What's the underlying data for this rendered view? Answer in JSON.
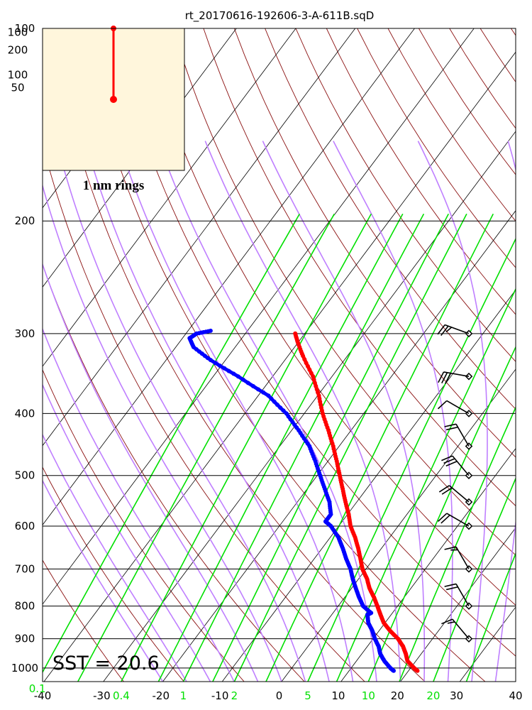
{
  "chart_data": {
    "type": "skew-t log-p sounding",
    "title": "rt_20170616-192606-3-A-611B.sqD",
    "annotation": "SST = 20.6",
    "inset": {
      "label": "1 nm rings",
      "height_labels": [
        "100",
        "200",
        "100",
        "50"
      ],
      "background": "#fff6dc",
      "hodograph": [
        {
          "u": 0.0,
          "v": 1.0
        },
        {
          "u": 0.0,
          "v": 0.0
        }
      ]
    },
    "pressure_labels": [
      "100",
      "200",
      "300",
      "400",
      "500",
      "600",
      "700",
      "800",
      "900",
      "1000"
    ],
    "pressure_levels": [
      100,
      200,
      300,
      400,
      500,
      600,
      700,
      800,
      900,
      1000
    ],
    "temperature_ticks": [
      "-40",
      "-30",
      "-20",
      "-10",
      "0",
      "10",
      "20",
      "30",
      "40"
    ],
    "temperature_values": [
      -40,
      -30,
      -20,
      -10,
      0,
      10,
      20,
      30,
      40
    ],
    "mixing_ratio_labels": [
      "0.1",
      "0.4",
      "1",
      "2",
      "5",
      "10",
      "20"
    ],
    "xlim": [
      -40,
      40
    ],
    "ylim": [
      1050,
      100
    ],
    "y_scale": "log",
    "colors": {
      "temperature": "#ff0000",
      "dewpoint": "#0000ff",
      "isotherm": "#000000",
      "dry_adiabat": "#8b1010",
      "moist_adiabat": "#bf7fff",
      "mixing_ratio": "#00e000",
      "grid": "#000000",
      "wind": "#000000",
      "inset_track": "#ff0000"
    },
    "series": [
      {
        "name": "temperature",
        "points": [
          {
            "p": 1010,
            "t": 21.5
          },
          {
            "p": 1000,
            "t": 20.6
          },
          {
            "p": 975,
            "t": 18.6
          },
          {
            "p": 950,
            "t": 17.4
          },
          {
            "p": 925,
            "t": 16.0
          },
          {
            "p": 900,
            "t": 14.2
          },
          {
            "p": 875,
            "t": 11.9
          },
          {
            "p": 850,
            "t": 9.8
          },
          {
            "p": 825,
            "t": 8.2
          },
          {
            "p": 800,
            "t": 6.6
          },
          {
            "p": 775,
            "t": 4.9
          },
          {
            "p": 750,
            "t": 3.0
          },
          {
            "p": 725,
            "t": 1.4
          },
          {
            "p": 700,
            "t": -0.6
          },
          {
            "p": 675,
            "t": -2.2
          },
          {
            "p": 650,
            "t": -3.9
          },
          {
            "p": 625,
            "t": -5.8
          },
          {
            "p": 600,
            "t": -8.0
          },
          {
            "p": 575,
            "t": -9.8
          },
          {
            "p": 550,
            "t": -11.9
          },
          {
            "p": 525,
            "t": -14.0
          },
          {
            "p": 500,
            "t": -16.2
          },
          {
            "p": 475,
            "t": -18.5
          },
          {
            "p": 450,
            "t": -21.0
          },
          {
            "p": 425,
            "t": -23.8
          },
          {
            "p": 400,
            "t": -26.9
          },
          {
            "p": 375,
            "t": -29.8
          },
          {
            "p": 350,
            "t": -33.2
          },
          {
            "p": 325,
            "t": -37.5
          },
          {
            "p": 310,
            "t": -40.0
          },
          {
            "p": 300,
            "t": -41.6
          }
        ]
      },
      {
        "name": "dewpoint",
        "points": [
          {
            "p": 1010,
            "t": 17.5
          },
          {
            "p": 1000,
            "t": 16.6
          },
          {
            "p": 975,
            "t": 14.7
          },
          {
            "p": 950,
            "t": 13.1
          },
          {
            "p": 925,
            "t": 11.9
          },
          {
            "p": 900,
            "t": 10.3
          },
          {
            "p": 875,
            "t": 8.9
          },
          {
            "p": 850,
            "t": 7.2
          },
          {
            "p": 825,
            "t": 6.0
          },
          {
            "p": 820,
            "t": 6.4
          },
          {
            "p": 800,
            "t": 4.2
          },
          {
            "p": 775,
            "t": 2.4
          },
          {
            "p": 750,
            "t": 0.7
          },
          {
            "p": 725,
            "t": -1.0
          },
          {
            "p": 700,
            "t": -2.6
          },
          {
            "p": 675,
            "t": -4.6
          },
          {
            "p": 650,
            "t": -6.5
          },
          {
            "p": 625,
            "t": -8.6
          },
          {
            "p": 600,
            "t": -11.3
          },
          {
            "p": 590,
            "t": -12.8
          },
          {
            "p": 575,
            "t": -12.8
          },
          {
            "p": 550,
            "t": -14.6
          },
          {
            "p": 525,
            "t": -17.0
          },
          {
            "p": 500,
            "t": -19.5
          },
          {
            "p": 475,
            "t": -22.1
          },
          {
            "p": 450,
            "t": -25.0
          },
          {
            "p": 425,
            "t": -28.8
          },
          {
            "p": 400,
            "t": -33.0
          },
          {
            "p": 375,
            "t": -38.3
          },
          {
            "p": 350,
            "t": -45.8
          },
          {
            "p": 330,
            "t": -52.5
          },
          {
            "p": 315,
            "t": -57.0
          },
          {
            "p": 305,
            "t": -58.8
          },
          {
            "p": 300,
            "t": -58.2
          },
          {
            "p": 297,
            "t": -56.2
          }
        ]
      }
    ],
    "wind_barbs": [
      {
        "p": 300,
        "direction": 290,
        "speed": 25
      },
      {
        "p": 350,
        "direction": 280,
        "speed": 30
      },
      {
        "p": 400,
        "direction": 300,
        "speed": 10
      },
      {
        "p": 450,
        "direction": 330,
        "speed": 20
      },
      {
        "p": 500,
        "direction": 320,
        "speed": 30
      },
      {
        "p": 550,
        "direction": 310,
        "speed": 20
      },
      {
        "p": 600,
        "direction": 300,
        "speed": 20
      },
      {
        "p": 700,
        "direction": 330,
        "speed": 15
      },
      {
        "p": 800,
        "direction": 330,
        "speed": 20
      },
      {
        "p": 900,
        "direction": 320,
        "speed": 15
      }
    ],
    "grid": true,
    "legend": "none"
  }
}
